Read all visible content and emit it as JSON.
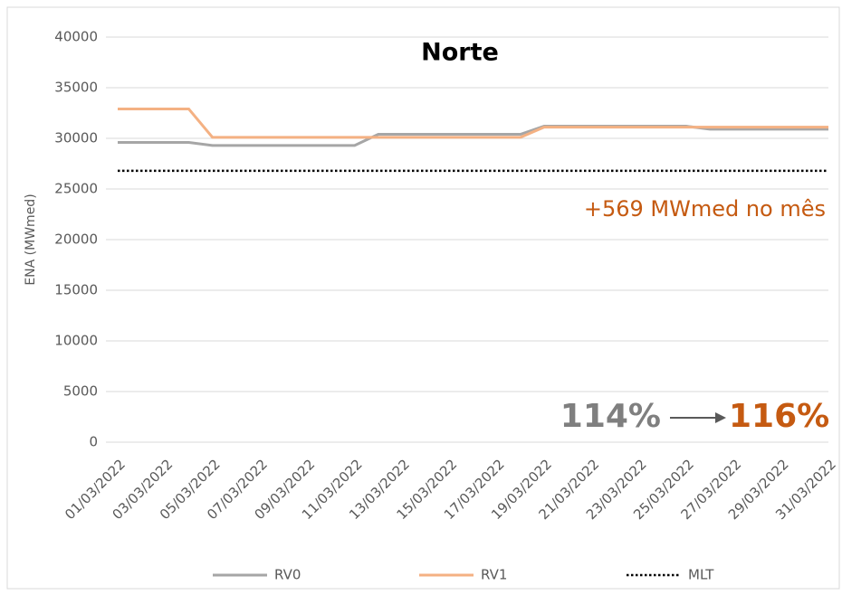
{
  "chart_data": {
    "type": "line",
    "title": "Norte",
    "y_label": "ENA (MWmed)",
    "annotations": [
      "+569 MWmed no mês",
      "114%",
      "116%"
    ],
    "categories": [
      "01/03/2022",
      null,
      "03/03/2022",
      null,
      "05/03/2022",
      null,
      "07/03/2022",
      null,
      "09/03/2022",
      null,
      "11/03/2022",
      null,
      "13/03/2022",
      null,
      "15/03/2022",
      null,
      "17/03/2022",
      null,
      "19/03/2022",
      null,
      "21/03/2022",
      null,
      "23/03/2022",
      null,
      "25/03/2022",
      null,
      "27/03/2022",
      null,
      "29/03/2022",
      null,
      "31/03/2022"
    ],
    "series": [
      {
        "name": "RV0",
        "color": "#a6a6a6",
        "dash": false,
        "values": [
          29600,
          29600,
          29600,
          29600,
          29300,
          29300,
          29300,
          29300,
          29300,
          29300,
          29300,
          30400,
          30400,
          30400,
          30400,
          30400,
          30400,
          30400,
          31200,
          31200,
          31200,
          31200,
          31200,
          31200,
          31200,
          30900,
          30900,
          30900,
          30900,
          30900,
          30900
        ]
      },
      {
        "name": "RV1",
        "color": "#f4b183",
        "dash": false,
        "values": [
          32900,
          32900,
          32900,
          32900,
          30100,
          30100,
          30100,
          30100,
          30100,
          30100,
          30100,
          30100,
          30100,
          30100,
          30100,
          30100,
          30100,
          30100,
          31100,
          31100,
          31100,
          31100,
          31100,
          31100,
          31100,
          31100,
          31100,
          31100,
          31100,
          31100,
          31100
        ]
      },
      {
        "name": "MLT",
        "color": "#000000",
        "dash": true,
        "values": [
          26800,
          26800,
          26800,
          26800,
          26800,
          26800,
          26800,
          26800,
          26800,
          26800,
          26800,
          26800,
          26800,
          26800,
          26800,
          26800,
          26800,
          26800,
          26800,
          26800,
          26800,
          26800,
          26800,
          26800,
          26800,
          26800,
          26800,
          26800,
          26800,
          26800,
          26800
        ]
      }
    ],
    "ylim": [
      0,
      40000
    ],
    "yticks": [
      0,
      5000,
      10000,
      15000,
      20000,
      25000,
      30000,
      35000,
      40000
    ],
    "grid": true,
    "legend": "bottom"
  }
}
